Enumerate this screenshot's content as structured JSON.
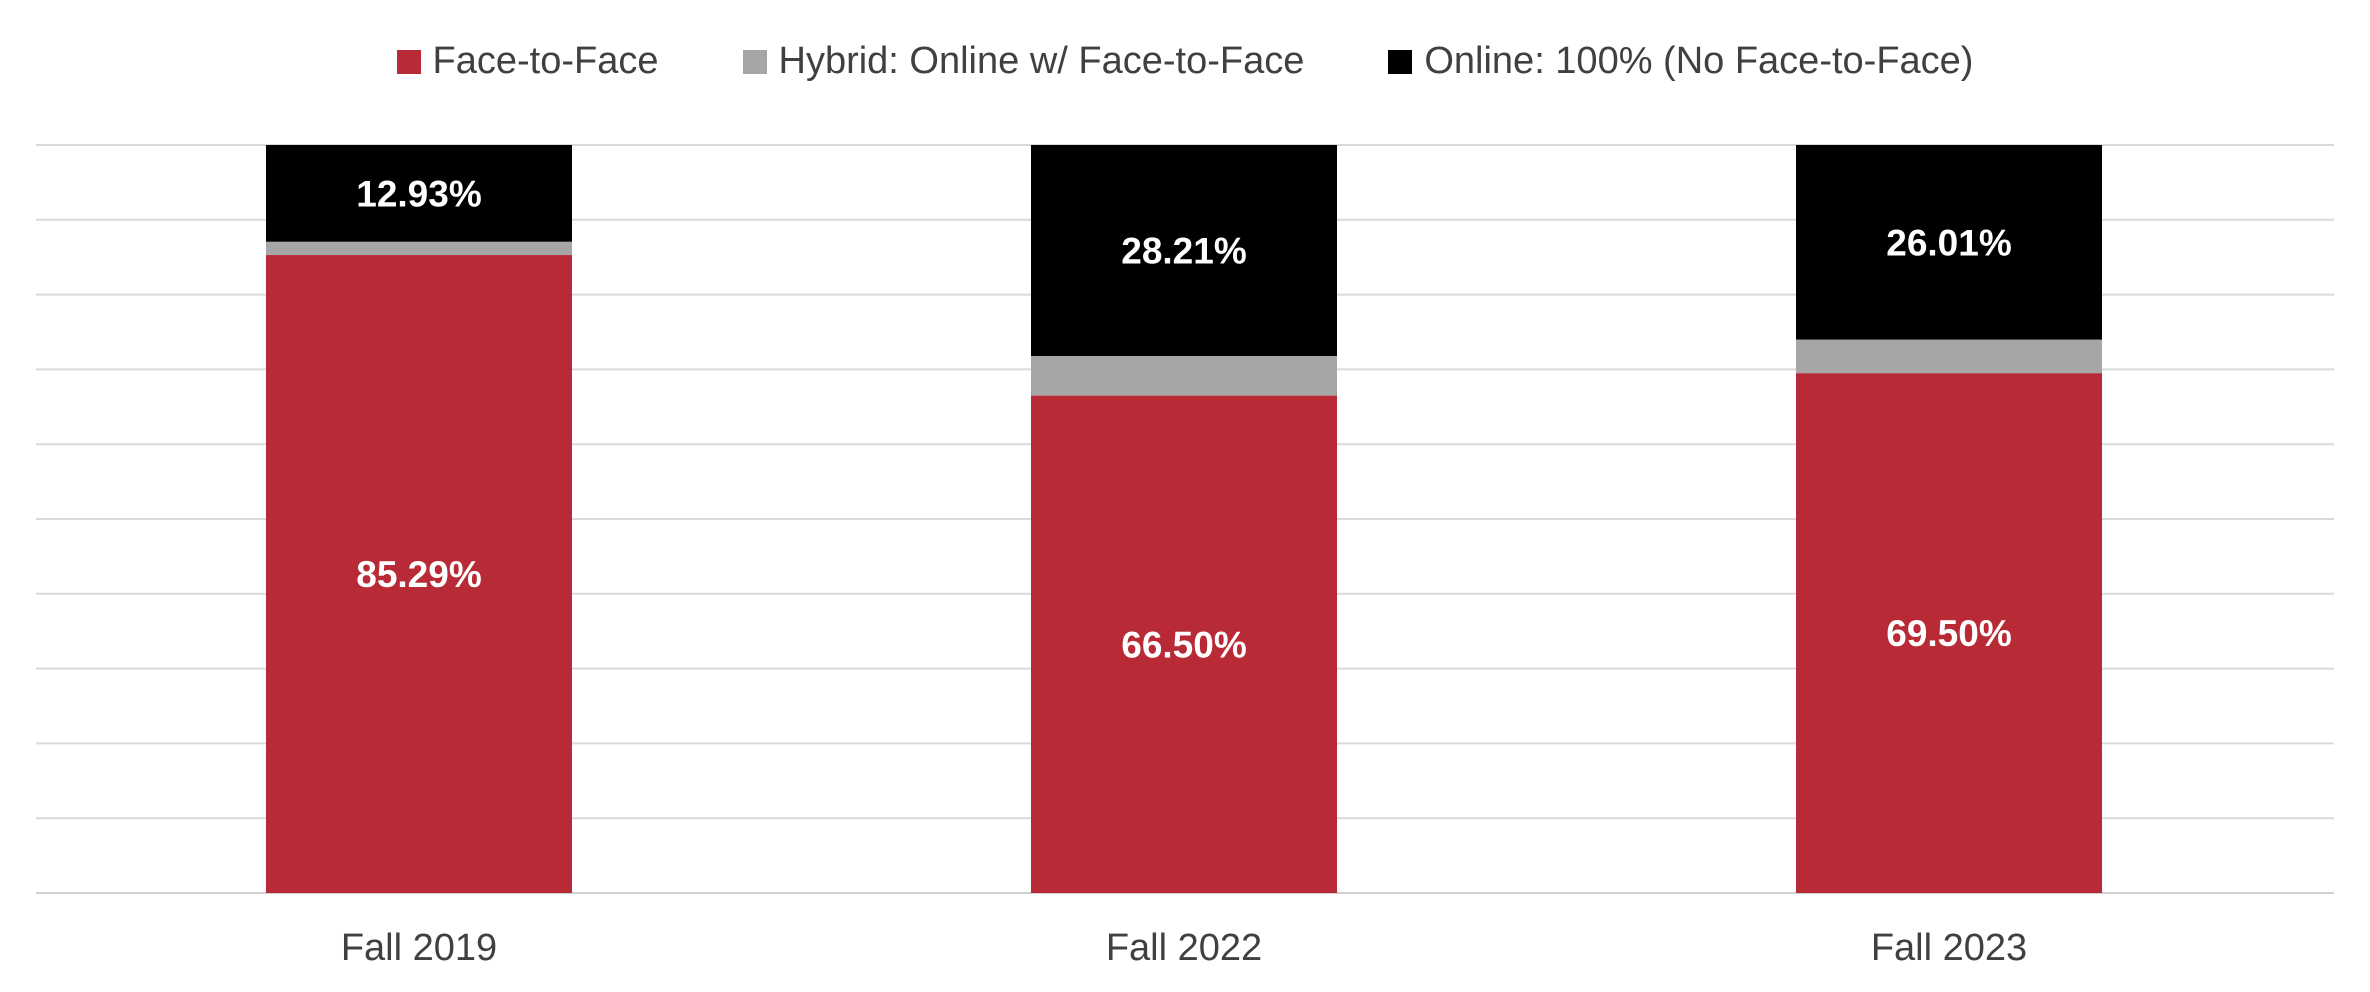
{
  "chart_data": {
    "type": "bar",
    "stacked": true,
    "categories": [
      "Fall 2019",
      "Fall 2022",
      "Fall 2023"
    ],
    "series": [
      {
        "name": "Face-to-Face",
        "values": [
          85.29,
          66.5,
          69.5
        ],
        "color": "#B82A35",
        "labels": [
          "85.29%",
          "66.50%",
          "69.50%"
        ],
        "label_color": "#FFFFFF"
      },
      {
        "name": "Hybrid: Online w/ Face-to-Face",
        "values": [
          1.78,
          5.29,
          4.49
        ],
        "color": "#A6A6A6",
        "labels": [
          "",
          "",
          ""
        ],
        "label_color": "#FFFFFF"
      },
      {
        "name": "Online: 100% (No Face-to-Face)",
        "values": [
          12.93,
          28.21,
          26.01
        ],
        "color": "#000000",
        "labels": [
          "12.93%",
          "28.21%",
          "26.01%"
        ],
        "label_color": "#FFFFFF"
      }
    ],
    "ylim": [
      0,
      100
    ],
    "grid": true,
    "grid_color": "#D9D9D9",
    "legend_position": "top",
    "title": "",
    "xlabel": "",
    "ylabel": ""
  }
}
